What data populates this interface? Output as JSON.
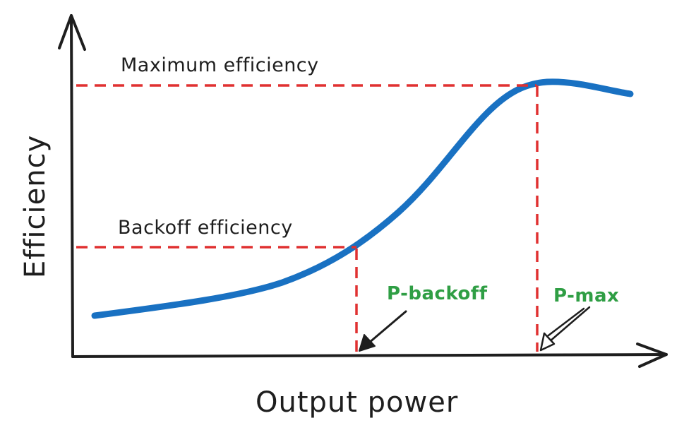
{
  "labels": {
    "y_axis": "Efficiency",
    "x_axis": "Output power",
    "max_efficiency": "Maximum efficiency",
    "backoff_efficiency": "Backoff efficiency",
    "p_backoff": "P-backoff",
    "p_max": "P-max"
  },
  "colors": {
    "curve": "#1971c2",
    "guide_lines": "#e03131",
    "marker_text": "#2f9e44",
    "ink": "#1e1e1e"
  }
}
